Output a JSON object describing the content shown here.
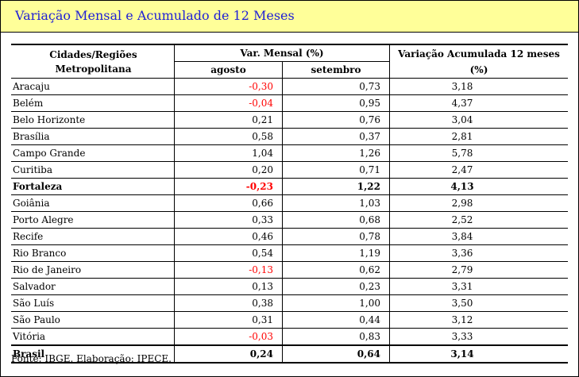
{
  "title": "Variação Mensal e Acumulado de 12 Meses",
  "header": {
    "city_col": "Cidades/Regiões Metropolitana",
    "monthly_col": "Var. Mensal (%)",
    "month1": "agosto",
    "month2": "setembro",
    "accumulated_col": "Variação Acumulada 12 meses (%)"
  },
  "rows": [
    {
      "city": "Aracaju",
      "agosto": "-0,30",
      "setembro": "0,73",
      "acumulado": "3,18"
    },
    {
      "city": "Belém",
      "agosto": "-0,04",
      "setembro": "0,95",
      "acumulado": "4,37"
    },
    {
      "city": "Belo Horizonte",
      "agosto": "0,21",
      "setembro": "0,76",
      "acumulado": "3,04"
    },
    {
      "city": "Brasília",
      "agosto": "0,58",
      "setembro": "0,37",
      "acumulado": "2,81"
    },
    {
      "city": "Campo Grande",
      "agosto": "1,04",
      "setembro": "1,26",
      "acumulado": "5,78"
    },
    {
      "city": "Curitiba",
      "agosto": "0,20",
      "setembro": "0,71",
      "acumulado": "2,47"
    },
    {
      "city": "Fortaleza",
      "agosto": "-0,23",
      "setembro": "1,22",
      "acumulado": "4,13"
    },
    {
      "city": "Goiânia",
      "agosto": "0,66",
      "setembro": "1,03",
      "acumulado": "2,98"
    },
    {
      "city": "Porto Alegre",
      "agosto": "0,33",
      "setembro": "0,68",
      "acumulado": "2,52"
    },
    {
      "city": "Recife",
      "agosto": "0,46",
      "setembro": "0,78",
      "acumulado": "3,84"
    },
    {
      "city": "Rio Branco",
      "agosto": "0,54",
      "setembro": "1,19",
      "acumulado": "3,36"
    },
    {
      "city": "Rio de Janeiro",
      "agosto": "-0,13",
      "setembro": "0,62",
      "acumulado": "2,79"
    },
    {
      "city": "Salvador",
      "agosto": "0,13",
      "setembro": "0,23",
      "acumulado": "3,31"
    },
    {
      "city": "São Luís",
      "agosto": "0,38",
      "setembro": "1,00",
      "acumulado": "3,50"
    },
    {
      "city": "São Paulo",
      "agosto": "0,31",
      "setembro": "0,44",
      "acumulado": "3,12"
    },
    {
      "city": "Vitória",
      "agosto": "-0,03",
      "setembro": "0,83",
      "acumulado": "3,33"
    }
  ],
  "total": {
    "city": "Brasil",
    "agosto": "0,24",
    "setembro": "0,64",
    "acumulado": "3,14"
  },
  "source": "Fonte: IBGE. Elaboração: IPECE.",
  "colors": {
    "title_bg": "#ffff99",
    "title_text": "#1f1fd6",
    "negative": "#ff0000"
  }
}
